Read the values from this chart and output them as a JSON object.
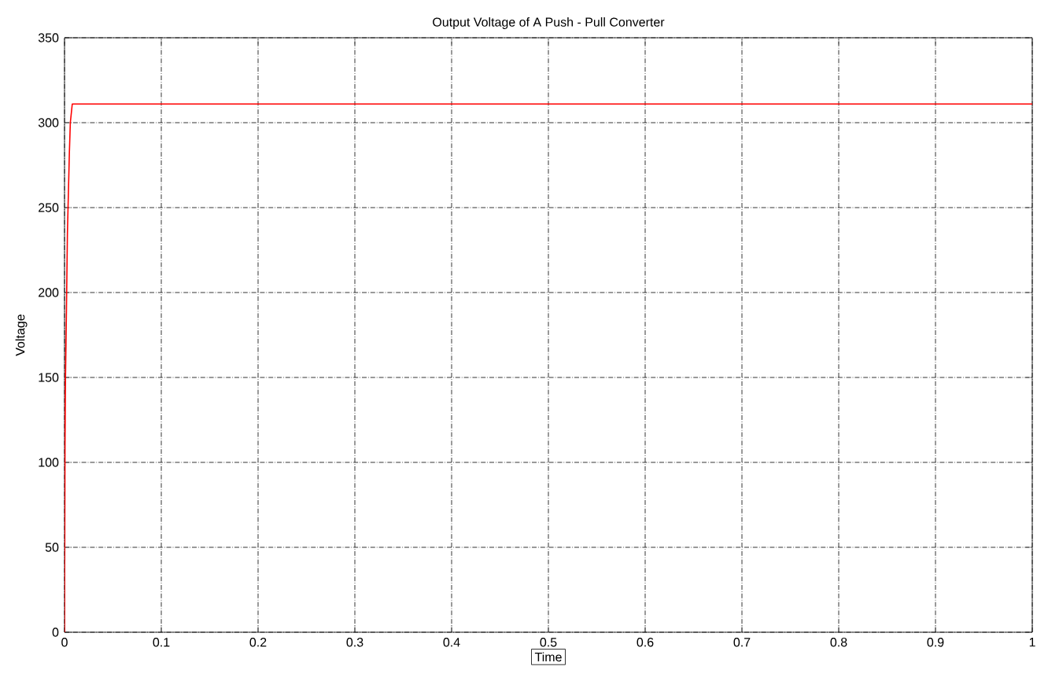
{
  "chart_data": {
    "type": "line",
    "title": "Output Voltage of A Push - Pull Converter",
    "xlabel": "Time",
    "ylabel": "Voltage",
    "x": [
      0,
      0.0005,
      0.001,
      0.002,
      0.003,
      0.005,
      0.006,
      0.008,
      0.1,
      0.5,
      1
    ],
    "series": [
      {
        "color": "#ff0000",
        "values": [
          0,
          110,
          150,
          190,
          235,
          282,
          300,
          311,
          311,
          311,
          311
        ]
      }
    ],
    "xlim": [
      0,
      1
    ],
    "xticks": [
      0,
      0.1,
      0.2,
      0.3,
      0.4,
      0.5,
      0.6,
      0.7,
      0.8,
      0.9,
      1
    ],
    "ylim": [
      0,
      350
    ],
    "yticks": [
      0,
      50,
      100,
      150,
      200,
      250,
      300,
      350
    ],
    "grid": true,
    "marker": "none",
    "line_style": "solid"
  }
}
